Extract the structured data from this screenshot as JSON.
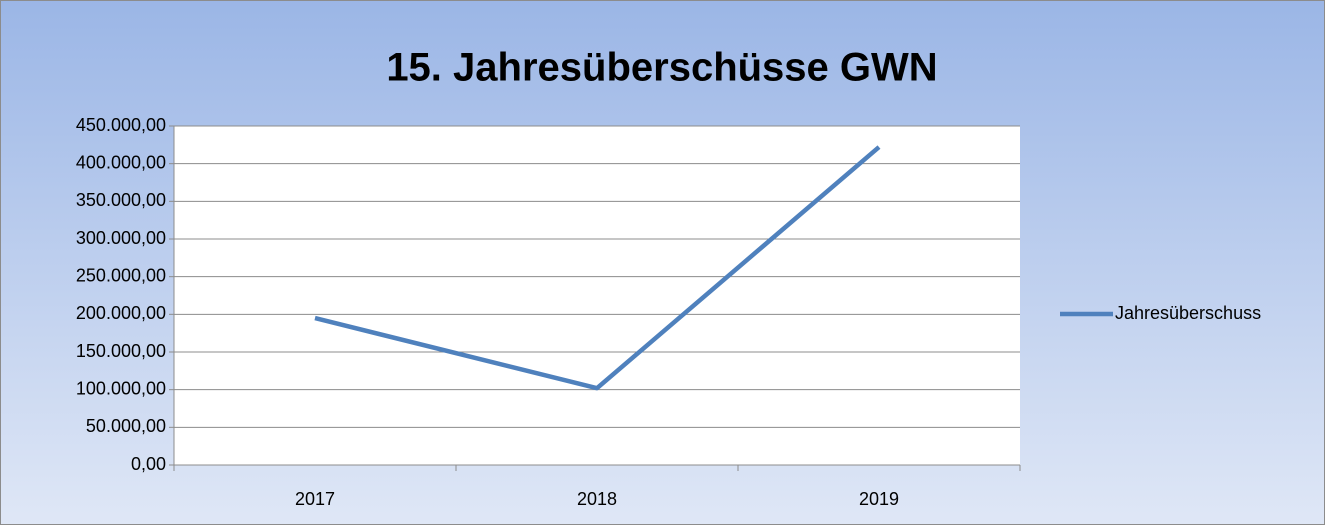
{
  "chart_data": {
    "type": "line",
    "title": "15. Jahresüberschüsse GWN",
    "categories": [
      "2017",
      "2018",
      "2019"
    ],
    "series": [
      {
        "name": "Jahresüberschuss",
        "color": "#4f81bd",
        "values": [
          195000,
          102000,
          422000
        ]
      }
    ],
    "ylim": [
      0,
      450000
    ],
    "yticks": [
      {
        "value": 0,
        "label": "0,00"
      },
      {
        "value": 50000,
        "label": "50.000,00"
      },
      {
        "value": 100000,
        "label": "100.000,00"
      },
      {
        "value": 150000,
        "label": "150.000,00"
      },
      {
        "value": 200000,
        "label": "200.000,00"
      },
      {
        "value": 250000,
        "label": "250.000,00"
      },
      {
        "value": 300000,
        "label": "300.000,00"
      },
      {
        "value": 350000,
        "label": "350.000,00"
      },
      {
        "value": 400000,
        "label": "400.000,00"
      },
      {
        "value": 450000,
        "label": "450.000,00"
      }
    ],
    "grid": true,
    "legend": "right"
  }
}
